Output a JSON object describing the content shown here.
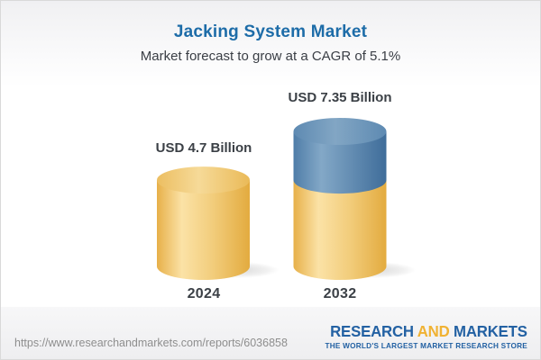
{
  "chart_data": {
    "type": "bar",
    "title": "Jacking System Market",
    "subtitle": "Market forecast to grow at a CAGR of 5.1%",
    "unit": "USD Billion",
    "categories": [
      "2024",
      "2032"
    ],
    "values": [
      4.7,
      7.35
    ],
    "value_labels": [
      "USD 4.7 Billion",
      "USD 7.35 Billion"
    ],
    "cagr_percent": 5.1,
    "style": "3d-cylinder",
    "base_color": "#F0C областях46A",
    "colors": {
      "base_segment": "#F2CE7D",
      "growth_segment": "#5E8AB2"
    },
    "legend": "none",
    "axes": "none"
  },
  "header": {
    "title": "Jacking System Market",
    "subtitle": "Market forecast to grow at a CAGR of 5.1%"
  },
  "bars": [
    {
      "year": "2024",
      "label": "USD 4.7 Billion"
    },
    {
      "year": "2032",
      "label": "USD 7.35 Billion"
    }
  ],
  "footer": {
    "url": "https://www.researchandmarkets.com/reports/6036858",
    "logo": {
      "part1": "RESEARCH",
      "part2": "AND",
      "part3": "MARKETS",
      "tagline": "THE WORLD'S LARGEST MARKET RESEARCH STORE"
    }
  },
  "colors": {
    "title_blue": "#1D6CA8",
    "text_dark": "#3B4046",
    "url_gray": "#8E8E8E",
    "logo_blue": "#2361A3",
    "logo_yellow": "#F0B233",
    "cylinder_yellow": "#F2CD7C",
    "cylinder_blue": "#5E8AB2"
  }
}
